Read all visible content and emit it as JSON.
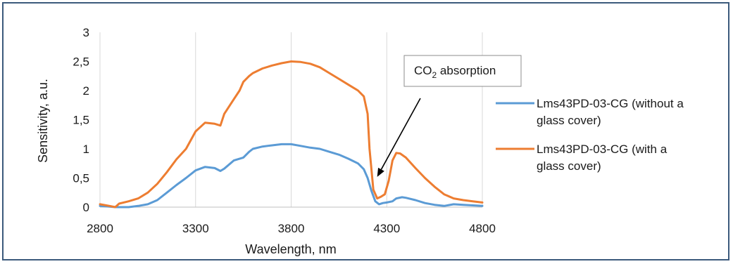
{
  "chart_data": {
    "type": "line",
    "xlabel": "Wavelength, nm",
    "ylabel": "Sensitivity, a.u.",
    "xlim": [
      2800,
      4800
    ],
    "ylim": [
      0,
      3
    ],
    "xticks": [
      "2800",
      "3300",
      "3800",
      "4300",
      "4800"
    ],
    "yticks": [
      "0",
      "0,5",
      "1",
      "1,5",
      "2",
      "2,5",
      "3"
    ],
    "grid": "vertical-major",
    "legend": "right",
    "annotation": {
      "prefix": "CO",
      "subscript": "2",
      "suffix": " absorption",
      "arrow_to": [
        4250,
        0.52
      ]
    },
    "series": [
      {
        "name_lines": [
          "Lms43PD-03-CG (without a",
          "glass cover)"
        ],
        "color": "#5b9bd5",
        "x": [
          2800,
          2850,
          2880,
          2950,
          3000,
          3050,
          3100,
          3150,
          3200,
          3250,
          3300,
          3350,
          3400,
          3430,
          3450,
          3500,
          3550,
          3580,
          3600,
          3650,
          3700,
          3750,
          3800,
          3850,
          3900,
          3950,
          4000,
          4050,
          4100,
          4150,
          4180,
          4200,
          4220,
          4240,
          4260,
          4280,
          4300,
          4330,
          4350,
          4380,
          4400,
          4450,
          4500,
          4550,
          4600,
          4650,
          4700,
          4750,
          4800
        ],
        "y": [
          0.02,
          0.01,
          0.0,
          0.0,
          0.02,
          0.05,
          0.12,
          0.25,
          0.38,
          0.5,
          0.63,
          0.69,
          0.67,
          0.62,
          0.66,
          0.8,
          0.85,
          0.95,
          1.0,
          1.04,
          1.06,
          1.08,
          1.08,
          1.05,
          1.02,
          1.0,
          0.95,
          0.9,
          0.83,
          0.75,
          0.65,
          0.5,
          0.28,
          0.1,
          0.05,
          0.07,
          0.08,
          0.1,
          0.15,
          0.17,
          0.16,
          0.12,
          0.07,
          0.04,
          0.02,
          0.05,
          0.04,
          0.03,
          0.02
        ]
      },
      {
        "name_lines": [
          "Lms43PD-03-CG (with a",
          "glass cover)"
        ],
        "color": "#ed7d31",
        "x": [
          2800,
          2850,
          2880,
          2900,
          2950,
          3000,
          3050,
          3100,
          3150,
          3200,
          3250,
          3300,
          3350,
          3400,
          3430,
          3450,
          3500,
          3530,
          3550,
          3580,
          3600,
          3650,
          3700,
          3750,
          3800,
          3850,
          3900,
          3950,
          4000,
          4050,
          4100,
          4150,
          4180,
          4200,
          4210,
          4230,
          4250,
          4270,
          4290,
          4310,
          4330,
          4350,
          4370,
          4400,
          4450,
          4500,
          4550,
          4600,
          4650,
          4700,
          4750,
          4800
        ],
        "y": [
          0.05,
          0.02,
          0.0,
          0.06,
          0.1,
          0.15,
          0.25,
          0.4,
          0.6,
          0.82,
          1.0,
          1.3,
          1.45,
          1.43,
          1.4,
          1.6,
          1.85,
          2.0,
          2.15,
          2.25,
          2.3,
          2.38,
          2.43,
          2.47,
          2.5,
          2.49,
          2.46,
          2.4,
          2.3,
          2.2,
          2.1,
          2.0,
          1.9,
          1.6,
          1.0,
          0.3,
          0.15,
          0.18,
          0.22,
          0.45,
          0.8,
          0.93,
          0.92,
          0.85,
          0.67,
          0.5,
          0.35,
          0.22,
          0.15,
          0.12,
          0.1,
          0.08
        ]
      }
    ]
  }
}
